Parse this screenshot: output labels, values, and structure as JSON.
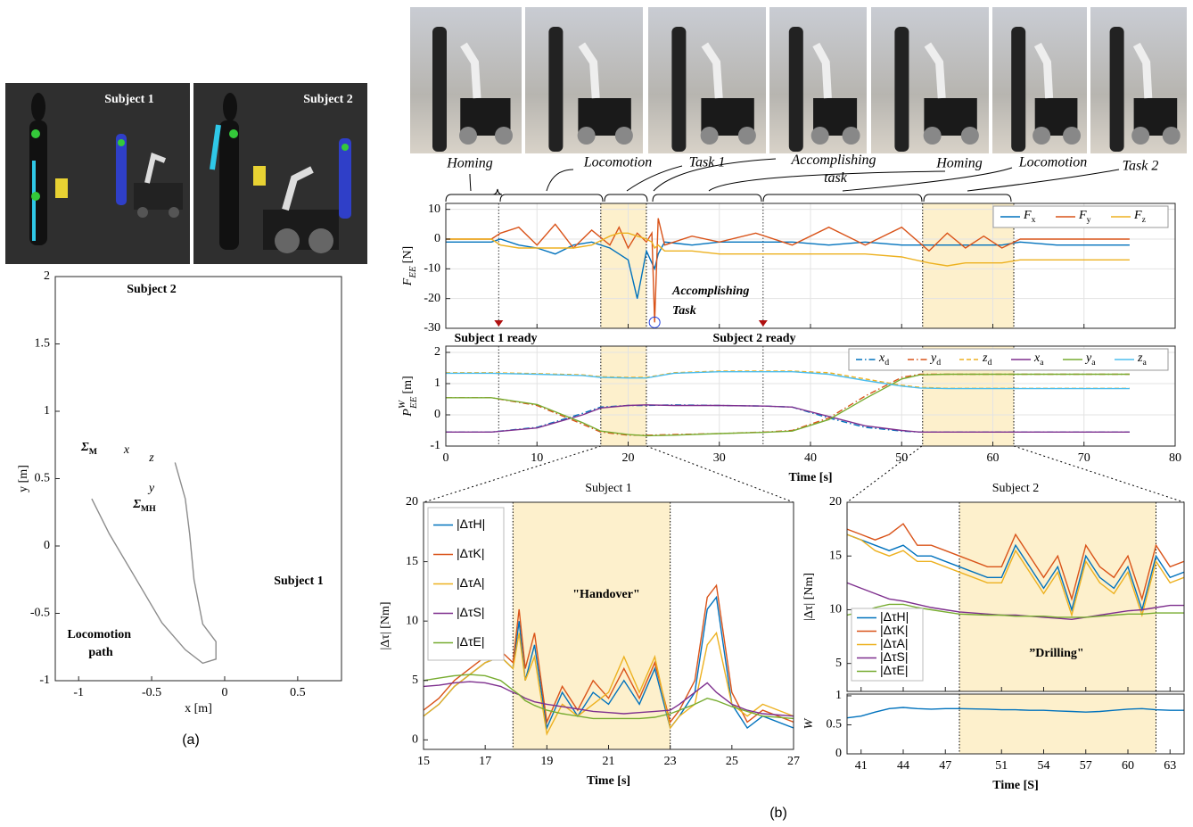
{
  "figure": {
    "screens": [
      "Subject 1",
      "Subject 2"
    ],
    "phases": [
      "Homing",
      "Locomotion",
      "Task 1",
      "Accomplishing task",
      "Homing",
      "Locomotion",
      "Task 2"
    ],
    "panel_a": "(a)",
    "panel_b": "(b)"
  },
  "chart_data": [
    {
      "type": "line",
      "xlabel": "x [m]",
      "ylabel": "y [m]",
      "xlim": [
        -1.16,
        0.8
      ],
      "ylim": [
        -1,
        2
      ],
      "xticks": [
        -1,
        -0.5,
        0,
        0.5
      ],
      "yticks": [
        -1,
        -0.5,
        0,
        0.5,
        1,
        1.5,
        2
      ],
      "grid": false,
      "color": "#8c8c8c",
      "x": [
        -0.91,
        -0.79,
        -0.61,
        -0.43,
        -0.27,
        -0.15,
        -0.06,
        -0.06,
        -0.15,
        -0.21,
        -0.24,
        -0.27,
        -0.34
      ],
      "values": [
        0.35,
        0.09,
        -0.24,
        -0.57,
        -0.77,
        -0.87,
        -0.84,
        -0.71,
        -0.58,
        -0.25,
        0.09,
        0.35,
        0.62
      ],
      "annotations": [
        "Subject 2",
        "Subject 1",
        "Locomotion path",
        "x",
        "z",
        "y",
        "ΣM",
        "ΣMH"
      ]
    },
    {
      "type": "line",
      "ylabel": {
        "symbol": "F",
        "sub": "EE",
        "unit": "[N]"
      },
      "xlim": [
        0,
        80
      ],
      "ylim": [
        -30,
        12
      ],
      "xticks": [
        0,
        10,
        20,
        30,
        40,
        50,
        60,
        70,
        80
      ],
      "yticks": [
        -30,
        -20,
        -10,
        0,
        10
      ],
      "grid": true,
      "xtick_labels": false,
      "legend": "upper right",
      "highlights": [
        [
          17,
          22
        ],
        [
          52.3,
          62.3
        ]
      ],
      "markers": [
        5.8,
        34.8
      ],
      "annotations": [
        "Subject 1 ready",
        "Subject 2 ready",
        "Accomplishing Task"
      ],
      "x": [
        0,
        5,
        6,
        8,
        10,
        12,
        14,
        16,
        18,
        19,
        20,
        21,
        22,
        22.6,
        22.9,
        23.3,
        24,
        27,
        30,
        34,
        38,
        42,
        46,
        50,
        53,
        55,
        57,
        59,
        61,
        63,
        67,
        75
      ],
      "series": [
        {
          "name": "Fx",
          "color": "#0072bd",
          "values": [
            -1,
            -1,
            0,
            -2,
            -3,
            -5,
            -2,
            -1,
            -3,
            -5,
            -7,
            -20,
            -4,
            -8,
            -10,
            -5,
            -1,
            -2,
            -1,
            -1,
            -1,
            -2,
            -1,
            -2,
            -2,
            -2,
            -2,
            -2,
            -2,
            -1,
            -2,
            -2
          ]
        },
        {
          "name": "Fy",
          "color": "#d95319",
          "values": [
            0,
            0,
            2,
            4,
            -2,
            5,
            -3,
            3,
            -2,
            4,
            -3,
            2,
            -1,
            2,
            -28,
            7,
            -2,
            1,
            -1,
            2,
            -2,
            4,
            -2,
            4,
            -4,
            2,
            -3,
            1,
            -3,
            0,
            0,
            0
          ]
        },
        {
          "name": "Fz",
          "color": "#edb120",
          "values": [
            0,
            0,
            -2,
            -3,
            -3,
            -3,
            -3,
            -2,
            1,
            2,
            2,
            1,
            0,
            -1,
            -3,
            -2,
            -4,
            -4,
            -5,
            -5,
            -5,
            -5,
            -5,
            -6,
            -8,
            -9,
            -8,
            -8,
            -8,
            -7,
            -7,
            -7
          ]
        }
      ]
    },
    {
      "type": "line",
      "ylabel": {
        "symbol": "P",
        "sub": "EE",
        "sup": "W",
        "unit": "[m]"
      },
      "xlabel": "Time [s]",
      "xlim": [
        0,
        80
      ],
      "ylim": [
        -1,
        2.2
      ],
      "xticks": [
        0,
        10,
        20,
        30,
        40,
        50,
        60,
        70,
        80
      ],
      "yticks": [
        -1,
        0,
        1,
        2
      ],
      "grid": true,
      "legend": "upper right",
      "highlights": [
        [
          17,
          22
        ],
        [
          52.3,
          62.3
        ]
      ],
      "markers": [
        5.8,
        34.8
      ],
      "x": [
        0,
        5,
        10,
        15,
        17,
        20,
        22,
        25,
        30,
        35,
        38,
        42,
        46,
        50,
        52,
        55,
        60,
        65,
        70,
        75
      ],
      "series": [
        {
          "name": "xd",
          "color": "#0072bd",
          "line_style": "dashdot",
          "values": [
            -0.55,
            -0.55,
            -0.4,
            0.05,
            0.25,
            0.3,
            0.3,
            0.32,
            0.3,
            0.28,
            0.25,
            -0.1,
            -0.4,
            -0.52,
            -0.55,
            -0.55,
            -0.55,
            -0.55,
            -0.55,
            -0.55
          ]
        },
        {
          "name": "yd",
          "color": "#d95319",
          "line_style": "dashdot",
          "values": [
            0.55,
            0.55,
            0.3,
            -0.3,
            -0.55,
            -0.65,
            -0.65,
            -0.63,
            -0.6,
            -0.55,
            -0.5,
            -0.1,
            0.6,
            1.2,
            1.3,
            1.3,
            1.3,
            1.3,
            1.3,
            1.3
          ]
        },
        {
          "name": "zd",
          "color": "#edb120",
          "line_style": "dashed",
          "values": [
            1.35,
            1.35,
            1.32,
            1.28,
            1.22,
            1.2,
            1.2,
            1.35,
            1.4,
            1.4,
            1.4,
            1.35,
            1.15,
            0.95,
            0.88,
            0.85,
            0.85,
            0.85,
            0.85,
            0.85
          ]
        },
        {
          "name": "xa",
          "color": "#7e2f8e",
          "values": [
            -0.55,
            -0.55,
            -0.42,
            0.0,
            0.22,
            0.3,
            0.32,
            0.3,
            0.3,
            0.28,
            0.25,
            -0.05,
            -0.35,
            -0.5,
            -0.55,
            -0.55,
            -0.55,
            -0.55,
            -0.55,
            -0.55
          ]
        },
        {
          "name": "ya",
          "color": "#77ac30",
          "values": [
            0.55,
            0.55,
            0.33,
            -0.25,
            -0.52,
            -0.63,
            -0.67,
            -0.65,
            -0.6,
            -0.56,
            -0.52,
            -0.15,
            0.52,
            1.15,
            1.28,
            1.3,
            1.3,
            1.3,
            1.3,
            1.3
          ]
        },
        {
          "name": "za",
          "color": "#4dbeee",
          "values": [
            1.33,
            1.33,
            1.3,
            1.26,
            1.2,
            1.18,
            1.18,
            1.33,
            1.38,
            1.38,
            1.38,
            1.3,
            1.1,
            0.92,
            0.86,
            0.84,
            0.84,
            0.84,
            0.84,
            0.84
          ]
        }
      ]
    },
    {
      "type": "line",
      "title": "Subject 1",
      "xlabel": "Time [s]",
      "ylabel": "|Δτ| [Nm]",
      "xlim": [
        15,
        27
      ],
      "ylim": [
        -0.8,
        20
      ],
      "xticks": [
        15,
        17,
        19,
        21,
        23,
        25,
        27
      ],
      "yticks": [
        0,
        5,
        10,
        15,
        20
      ],
      "grid": false,
      "legend": "upper left",
      "highlights": [
        [
          17.9,
          23
        ]
      ],
      "annotations": [
        "\"Handover\""
      ],
      "x": [
        15,
        15.5,
        16,
        16.5,
        17,
        17.5,
        17.9,
        18.1,
        18.3,
        18.6,
        19,
        19.5,
        20,
        20.5,
        21,
        21.5,
        22,
        22.5,
        23,
        23.3,
        23.8,
        24.2,
        24.5,
        25,
        25.5,
        26,
        27
      ],
      "series": [
        {
          "name": "|ΔτH|",
          "color": "#0072bd",
          "values": [
            2,
            3,
            4.5,
            5.5,
            6.5,
            7,
            6,
            10,
            5,
            8,
            1,
            4,
            2,
            4,
            3,
            5,
            3,
            6,
            1,
            2,
            4,
            11,
            12,
            3,
            1,
            2,
            1
          ]
        },
        {
          "name": "|ΔτK|",
          "color": "#d95319",
          "values": [
            2.5,
            3.5,
            5,
            6,
            7,
            7.5,
            6.5,
            11,
            6,
            9,
            1.5,
            4.5,
            2.5,
            5,
            3.5,
            6,
            3.5,
            6.5,
            1.5,
            2.5,
            5,
            12,
            13,
            4,
            1.5,
            2.5,
            1.5
          ]
        },
        {
          "name": "|ΔτA|",
          "color": "#edb120",
          "values": [
            2,
            3,
            4.5,
            5.5,
            6.5,
            7,
            6,
            9,
            5,
            7,
            0.5,
            3,
            2,
            3,
            4,
            7,
            4,
            7,
            1,
            2,
            3,
            8,
            9,
            3,
            2,
            3,
            2
          ]
        },
        {
          "name": "|ΔτS|",
          "color": "#7e2f8e",
          "values": [
            4.5,
            4.6,
            4.8,
            4.9,
            4.8,
            4.5,
            4,
            3.8,
            3.5,
            3.2,
            3,
            2.8,
            2.6,
            2.4,
            2.3,
            2.2,
            2.3,
            2.4,
            2.5,
            3,
            4,
            4.8,
            4,
            3,
            2.5,
            2.2,
            2
          ]
        },
        {
          "name": "|ΔτE|",
          "color": "#77ac30",
          "values": [
            5,
            5.2,
            5.4,
            5.5,
            5.4,
            5,
            4.2,
            3.8,
            3.3,
            2.9,
            2.5,
            2.2,
            2,
            1.8,
            1.8,
            1.8,
            1.8,
            1.9,
            2.2,
            2.5,
            3,
            3.5,
            3.3,
            2.8,
            2.4,
            2,
            1.8
          ]
        }
      ]
    },
    {
      "type": "line",
      "title": "Subject 2",
      "ylabel": "|Δτ| [Nm]",
      "xlim": [
        40,
        64
      ],
      "ylim": [
        2.4,
        20
      ],
      "xticks": [
        41,
        44,
        47,
        51,
        54,
        57,
        60,
        63
      ],
      "yticks": [
        5,
        10,
        15,
        20
      ],
      "grid": false,
      "xtick_labels": false,
      "legend": "lower left",
      "highlights": [
        [
          48,
          62
        ]
      ],
      "annotations": [
        "”Drilling\""
      ],
      "x": [
        40,
        41,
        42,
        43,
        44,
        45,
        46,
        47,
        48,
        50,
        51,
        52,
        53,
        54,
        55,
        56,
        57,
        58,
        59,
        60,
        61,
        62,
        63,
        64
      ],
      "series": [
        {
          "name": "|ΔτH|",
          "color": "#0072bd",
          "values": [
            17,
            16.5,
            16,
            15.5,
            16,
            15,
            15,
            14.5,
            14,
            13,
            13,
            16,
            14,
            12,
            14,
            10,
            15,
            13,
            12,
            14,
            10,
            15,
            13,
            13.5
          ]
        },
        {
          "name": "|ΔτK|",
          "color": "#d95319",
          "values": [
            17.5,
            17,
            16.5,
            17,
            18,
            16,
            16,
            15.5,
            15,
            14,
            14,
            17,
            15,
            13,
            15,
            11,
            16,
            14,
            13,
            15,
            11,
            16,
            14,
            14.5
          ]
        },
        {
          "name": "|ΔτA|",
          "color": "#edb120",
          "values": [
            17,
            16.5,
            15.5,
            15,
            15.5,
            14.5,
            14.5,
            14,
            13.5,
            12.5,
            12.5,
            15.5,
            13.5,
            11.5,
            13.5,
            9.5,
            14.5,
            12.5,
            11.5,
            13.5,
            9.5,
            14.5,
            12.5,
            13
          ]
        },
        {
          "name": "|ΔτS|",
          "color": "#7e2f8e",
          "values": [
            12.5,
            12,
            11.5,
            11,
            10.8,
            10.5,
            10.2,
            10,
            9.8,
            9.6,
            9.5,
            9.5,
            9.4,
            9.3,
            9.2,
            9.1,
            9.3,
            9.5,
            9.7,
            9.9,
            10,
            10.2,
            10.4,
            10.4
          ]
        },
        {
          "name": "|ΔτE|",
          "color": "#77ac30",
          "values": [
            9.5,
            9.8,
            10.2,
            10.5,
            10.5,
            10.2,
            10,
            9.8,
            9.6,
            9.5,
            9.5,
            9.4,
            9.4,
            9.4,
            9.3,
            9.3,
            9.3,
            9.4,
            9.5,
            9.6,
            9.6,
            9.7,
            9.7,
            9.7
          ]
        }
      ]
    },
    {
      "type": "line",
      "xlabel": "Time [S]",
      "ylabel": "W",
      "xlim": [
        40,
        64
      ],
      "ylim": [
        0,
        1.03
      ],
      "xticks": [
        41,
        44,
        47,
        51,
        54,
        57,
        60,
        63
      ],
      "yticks": [
        0,
        0.5,
        1
      ],
      "grid": false,
      "highlights": [
        [
          48,
          62
        ]
      ],
      "x": [
        40,
        41,
        42,
        43,
        44,
        45,
        46,
        47,
        48,
        50,
        51,
        52,
        53,
        54,
        55,
        56,
        57,
        58,
        59,
        60,
        61,
        62,
        63,
        64
      ],
      "values": [
        0.62,
        0.65,
        0.72,
        0.78,
        0.8,
        0.78,
        0.77,
        0.78,
        0.78,
        0.77,
        0.76,
        0.76,
        0.75,
        0.75,
        0.74,
        0.73,
        0.72,
        0.73,
        0.75,
        0.77,
        0.78,
        0.76,
        0.75,
        0.75
      ],
      "color": "#0072bd"
    }
  ]
}
